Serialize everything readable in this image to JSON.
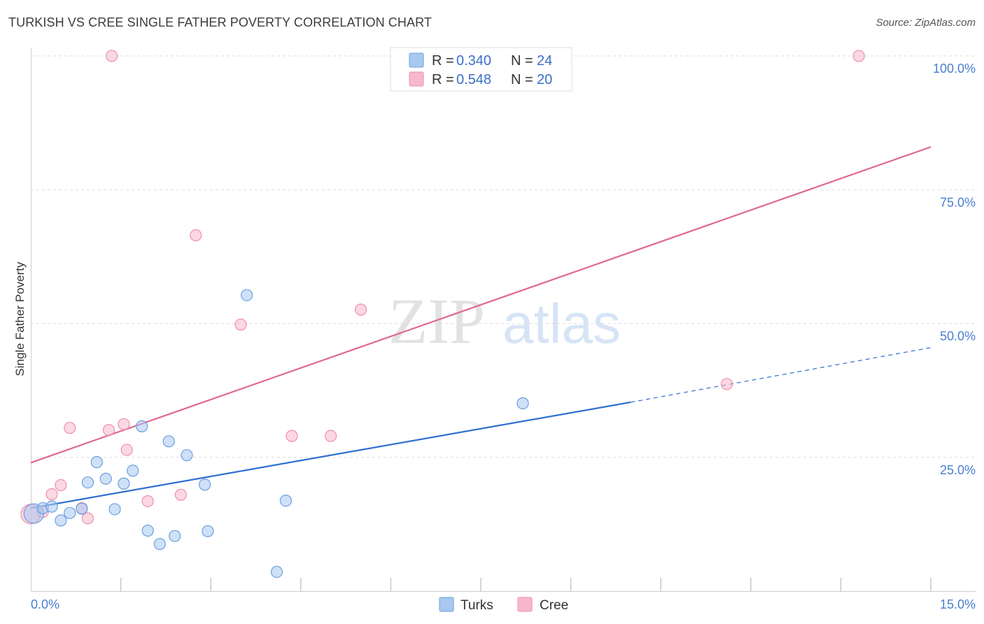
{
  "header": {
    "title": "TURKISH VS CREE SINGLE FATHER POVERTY CORRELATION CHART",
    "source": "Source: ZipAtlas.com"
  },
  "watermark": {
    "zip": "ZIP",
    "atlas": "atlas"
  },
  "legend": {
    "rows": [
      {
        "r_label": "R = ",
        "r_value": "0.340",
        "n_label": "N = ",
        "n_value": "24",
        "color": "#a8c8f0"
      },
      {
        "r_label": "R = ",
        "r_value": "0.548",
        "n_label": "N = ",
        "n_value": "20",
        "color": "#f7b8cb"
      }
    ]
  },
  "chart_data": {
    "type": "scatter",
    "title": "TURKISH VS CREE SINGLE FATHER POVERTY CORRELATION CHART",
    "xlabel": "",
    "ylabel": "Single Father Poverty",
    "xlim": [
      0,
      15
    ],
    "ylim": [
      0,
      100
    ],
    "x_tick_labels": [
      "0.0%",
      "15.0%"
    ],
    "y_ticks": [
      25,
      50,
      75,
      100
    ],
    "y_tick_labels": [
      "25.0%",
      "50.0%",
      "75.0%",
      "100.0%"
    ],
    "grid": true,
    "series": [
      {
        "name": "Turks",
        "color": "#a8c8f0",
        "stroke": "#6a9fe0",
        "line_color": "#2e6fd0",
        "points": [
          {
            "x": 0.05,
            "y": 14.5,
            "big": true
          },
          {
            "x": 0.2,
            "y": 15.5
          },
          {
            "x": 0.35,
            "y": 15.8
          },
          {
            "x": 0.5,
            "y": 13.2
          },
          {
            "x": 0.65,
            "y": 14.6
          },
          {
            "x": 0.85,
            "y": 15.4
          },
          {
            "x": 0.95,
            "y": 20.3
          },
          {
            "x": 1.1,
            "y": 24.1
          },
          {
            "x": 1.25,
            "y": 21.0
          },
          {
            "x": 1.4,
            "y": 15.3
          },
          {
            "x": 1.55,
            "y": 20.1
          },
          {
            "x": 1.7,
            "y": 22.5
          },
          {
            "x": 1.85,
            "y": 30.8
          },
          {
            "x": 1.95,
            "y": 11.3
          },
          {
            "x": 2.15,
            "y": 8.8
          },
          {
            "x": 2.3,
            "y": 28.0
          },
          {
            "x": 2.4,
            "y": 10.3
          },
          {
            "x": 2.6,
            "y": 25.4
          },
          {
            "x": 2.9,
            "y": 19.9
          },
          {
            "x": 2.95,
            "y": 11.2
          },
          {
            "x": 3.6,
            "y": 55.3
          },
          {
            "x": 4.1,
            "y": 3.6
          },
          {
            "x": 4.25,
            "y": 16.9
          },
          {
            "x": 8.2,
            "y": 35.1
          }
        ],
        "trend": {
          "x0": 0,
          "y0": 15.5,
          "x1": 10.0,
          "y1": 35.3,
          "dash_x1": 15.0,
          "dash_y1": 45.5
        }
      },
      {
        "name": "Cree",
        "color": "#f7b8cb",
        "stroke": "#ee8fab",
        "line_color": "#e06890",
        "points": [
          {
            "x": 0.0,
            "y": 14.4,
            "big": true
          },
          {
            "x": 0.2,
            "y": 14.8
          },
          {
            "x": 0.35,
            "y": 18.1
          },
          {
            "x": 0.5,
            "y": 19.8
          },
          {
            "x": 0.65,
            "y": 30.5
          },
          {
            "x": 0.85,
            "y": 15.5
          },
          {
            "x": 0.95,
            "y": 13.6
          },
          {
            "x": 1.3,
            "y": 30.1
          },
          {
            "x": 1.35,
            "y": 100
          },
          {
            "x": 1.55,
            "y": 31.2
          },
          {
            "x": 1.6,
            "y": 26.4
          },
          {
            "x": 1.95,
            "y": 16.8
          },
          {
            "x": 2.5,
            "y": 18.0
          },
          {
            "x": 2.75,
            "y": 66.5
          },
          {
            "x": 3.5,
            "y": 49.8
          },
          {
            "x": 4.35,
            "y": 29.0
          },
          {
            "x": 5.0,
            "y": 29.0
          },
          {
            "x": 5.5,
            "y": 52.6
          },
          {
            "x": 11.6,
            "y": 38.7
          },
          {
            "x": 13.8,
            "y": 100
          }
        ],
        "trend": {
          "x0": 0,
          "y0": 24.0,
          "x1": 15.0,
          "y1": 83.0
        }
      }
    ]
  }
}
